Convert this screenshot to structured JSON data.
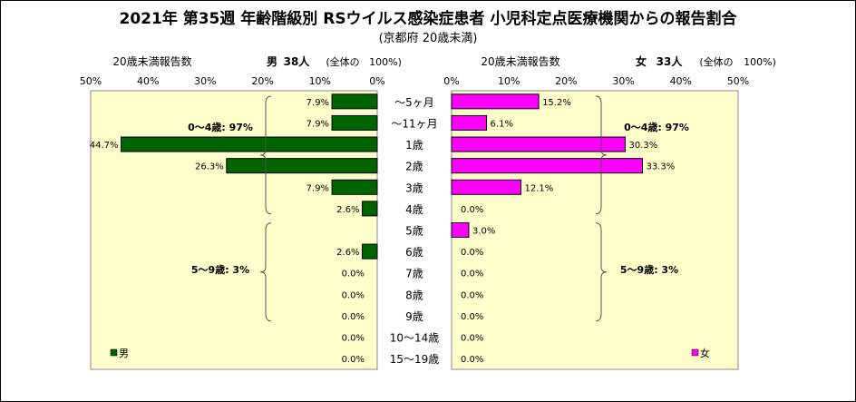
{
  "title": "2021年 第35週 年齢階級別 RSウイルス感染症患者 小児科定点医療機関からの報告割合",
  "subtitle": "(京都府 20歳未満)",
  "colors": {
    "male": "#006400",
    "female": "#FF00FF",
    "plot_bg": "#FFFFCC"
  },
  "chart_data": {
    "type": "bar",
    "orientation": "horizontal-butterfly",
    "categories": [
      "～5ヶ月",
      "～11ヶ月",
      "1歳",
      "2歳",
      "3歳",
      "4歳",
      "5歳",
      "6歳",
      "7歳",
      "8歳",
      "9歳",
      "10～14歳",
      "15～19歳"
    ],
    "xlim": [
      0,
      50
    ],
    "ticks": [
      "0%",
      "10%",
      "20%",
      "30%",
      "40%",
      "50%"
    ],
    "grid": false,
    "series": [
      {
        "name": "男",
        "values": [
          7.9,
          7.9,
          44.7,
          26.3,
          7.9,
          2.6,
          0,
          2.6,
          0,
          0,
          0,
          0,
          0
        ],
        "labels": [
          "7.9%",
          "7.9%",
          "44.7%",
          "26.3%",
          "7.9%",
          "2.6%",
          "",
          "2.6%",
          "0.0%",
          "0.0%",
          "0.0%",
          "0.0%",
          "0.0%"
        ]
      },
      {
        "name": "女",
        "values": [
          15.2,
          6.1,
          30.3,
          33.3,
          12.1,
          0,
          3.0,
          0,
          0,
          0,
          0,
          0,
          0
        ],
        "labels": [
          "15.2%",
          "6.1%",
          "30.3%",
          "33.3%",
          "12.1%",
          "0.0%",
          "3.0%",
          "0.0%",
          "0.0%",
          "0.0%",
          "0.0%",
          "0.0%",
          "0.0%"
        ]
      }
    ],
    "left_header": {
      "count_label": "20歳未満報告数",
      "group": "男",
      "total": "38人",
      "scope": "(全体の",
      "pct": "100%)"
    },
    "right_header": {
      "count_label": "20歳未満報告数",
      "group": "女",
      "total": "33人",
      "scope": "(全体の",
      "pct": "100%)"
    },
    "annotations": {
      "left_group1": "0～4歳: 97%",
      "left_group2": "5～9歳: 3%",
      "right_group1": "0～4歳: 97%",
      "right_group2": "5～9歳: 3%"
    },
    "legend": {
      "male": "男",
      "female": "女",
      "placement": "bottom"
    }
  }
}
